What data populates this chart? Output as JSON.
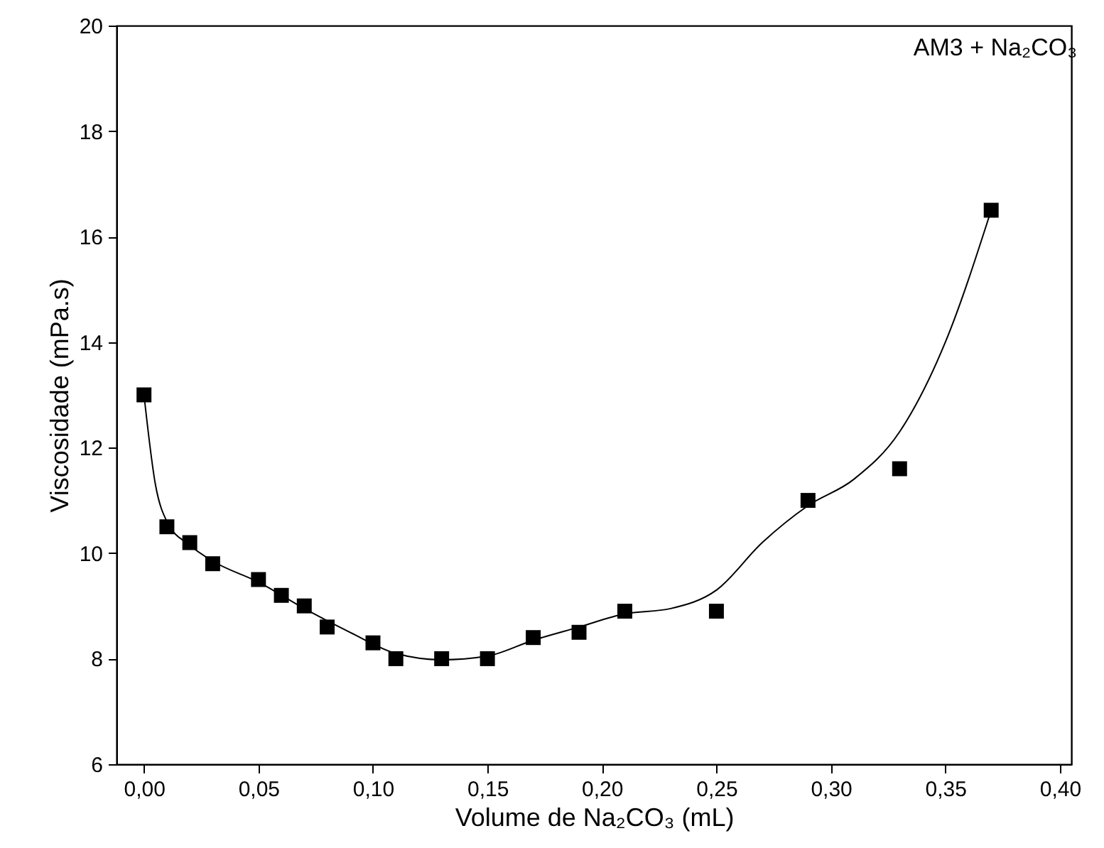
{
  "chart_data": {
    "type": "scatter",
    "xlabel": "Volume de Na₂CO₃ (mL)",
    "ylabel": "Viscosidade (mPa.s)",
    "annotations": [
      "AM3 + Na₂CO₃"
    ],
    "xlim": [
      -0.012,
      0.405
    ],
    "ylim": [
      6,
      20
    ],
    "xticks": [
      {
        "value": 0,
        "label": "0,00"
      },
      {
        "value": 0.05,
        "label": "0,05"
      },
      {
        "value": 0.1,
        "label": "0,10"
      },
      {
        "value": 0.15,
        "label": "0,15"
      },
      {
        "value": 0.2,
        "label": "0,20"
      },
      {
        "value": 0.25,
        "label": "0,25"
      },
      {
        "value": 0.3,
        "label": "0,30"
      },
      {
        "value": 0.35,
        "label": "0,35"
      },
      {
        "value": 0.4,
        "label": "0,40"
      }
    ],
    "yticks": [
      6,
      8,
      10,
      12,
      14,
      16,
      18,
      20
    ],
    "grid": false,
    "series": [
      {
        "marker": "square",
        "color": "#000000",
        "x": [
          0,
          0.01,
          0.02,
          0.03,
          0.05,
          0.06,
          0.07,
          0.08,
          0.1,
          0.11,
          0.13,
          0.15,
          0.17,
          0.19,
          0.21,
          0.25,
          0.29,
          0.33,
          0.37
        ],
        "values": [
          13,
          10.5,
          10.2,
          9.8,
          9.5,
          9.2,
          9.0,
          8.6,
          8.3,
          8.0,
          8.0,
          8.0,
          8.4,
          8.5,
          8.9,
          8.9,
          11.0,
          11.6,
          16.5
        ]
      },
      {
        "type": "line",
        "line_style": "solid",
        "color": "#000000",
        "x": [
          0,
          0.005,
          0.01,
          0.02,
          0.03,
          0.05,
          0.07,
          0.09,
          0.11,
          0.13,
          0.15,
          0.17,
          0.19,
          0.21,
          0.23,
          0.25,
          0.27,
          0.29,
          0.31,
          0.33,
          0.35,
          0.37
        ],
        "values": [
          13,
          11.3,
          10.6,
          10.15,
          9.85,
          9.45,
          8.95,
          8.5,
          8.1,
          7.98,
          8.05,
          8.35,
          8.6,
          8.85,
          8.95,
          9.3,
          10.2,
          10.9,
          11.4,
          12.3,
          14.0,
          16.5
        ]
      }
    ]
  }
}
